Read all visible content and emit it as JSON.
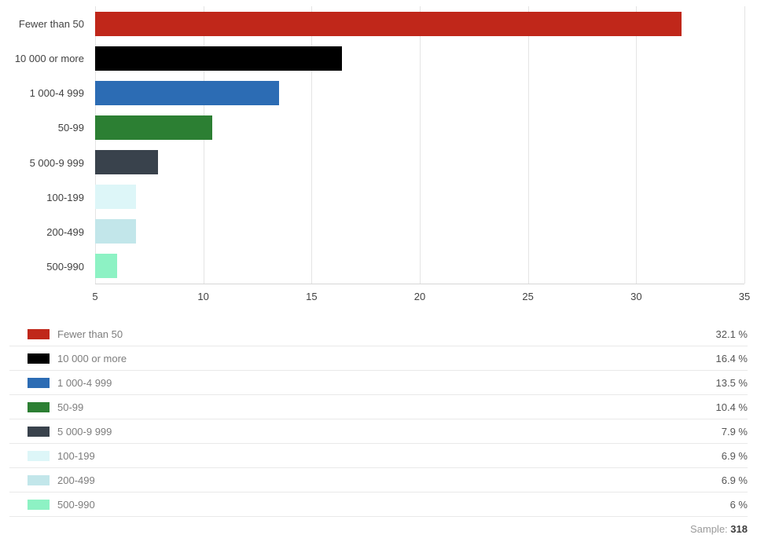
{
  "chart_data": {
    "type": "bar",
    "orientation": "horizontal",
    "title": "",
    "categories": [
      "Fewer than 50",
      "10 000 or more",
      "1 000-4 999",
      "50-99",
      "5 000-9 999",
      "100-199",
      "200-499",
      "500-990"
    ],
    "values": [
      32.1,
      16.4,
      13.5,
      10.4,
      7.9,
      6.9,
      6.9,
      6
    ],
    "value_labels": [
      "32.1 %",
      "16.4 %",
      "13.5 %",
      "10.4 %",
      "7.9 %",
      "6.9 %",
      "6.9 %",
      "6 %"
    ],
    "colors": [
      "#c0271a",
      "#000000",
      "#2c6cb4",
      "#2c7f33",
      "#39424c",
      "#ddf6f8",
      "#c2e6ea",
      "#8df2c4"
    ],
    "xlim": [
      5,
      35
    ],
    "x_ticks": [
      "5",
      "10",
      "15",
      "20",
      "25",
      "30",
      "35"
    ],
    "grid": true,
    "legend_position": "bottom"
  },
  "footer": {
    "sample_label": "Sample:",
    "sample_value": "318"
  }
}
